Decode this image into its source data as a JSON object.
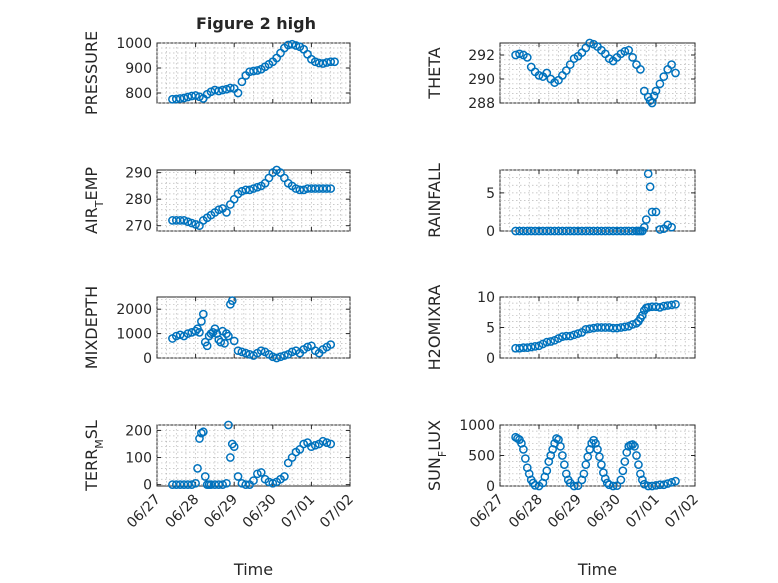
{
  "figure": {
    "title": "Figure 2 high",
    "marker_color": "#0072BD"
  },
  "chart_data": [
    {
      "type": "scatter",
      "ylabel": "PRESSURE",
      "ylabel_sub": "",
      "xlabel": "",
      "ylim": [
        760,
        1000
      ],
      "yticks": [
        800,
        900,
        1000
      ],
      "xlim": [
        0,
        5
      ],
      "xtick_labels": [],
      "grid": true,
      "x": [
        0.4,
        0.5,
        0.6,
        0.7,
        0.8,
        0.9,
        1.0,
        1.1,
        1.2,
        1.3,
        1.4,
        1.5,
        1.6,
        1.7,
        1.8,
        1.9,
        2.0,
        2.1,
        2.2,
        2.3,
        2.4,
        2.5,
        2.6,
        2.7,
        2.8,
        2.9,
        3.0,
        3.1,
        3.2,
        3.3,
        3.4,
        3.5,
        3.6,
        3.7,
        3.8,
        3.9,
        4.0,
        4.1,
        4.2,
        4.3,
        4.4,
        4.5,
        4.6
      ],
      "y": [
        775,
        776,
        778,
        780,
        784,
        788,
        790,
        785,
        778,
        795,
        805,
        812,
        808,
        812,
        815,
        820,
        818,
        800,
        845,
        870,
        885,
        888,
        890,
        895,
        905,
        915,
        925,
        940,
        960,
        980,
        992,
        995,
        990,
        985,
        975,
        955,
        935,
        925,
        920,
        918,
        922,
        925,
        925
      ]
    },
    {
      "type": "scatter",
      "ylabel": "THETA",
      "ylabel_sub": "",
      "xlabel": "",
      "ylim": [
        288,
        293
      ],
      "yticks": [
        288,
        290,
        292
      ],
      "xlim": [
        0,
        5
      ],
      "xtick_labels": [],
      "grid": true,
      "x": [
        0.4,
        0.5,
        0.6,
        0.7,
        0.8,
        0.9,
        1.0,
        1.1,
        1.2,
        1.3,
        1.4,
        1.5,
        1.6,
        1.7,
        1.8,
        1.9,
        2.0,
        2.1,
        2.2,
        2.3,
        2.4,
        2.5,
        2.6,
        2.7,
        2.8,
        2.9,
        3.0,
        3.1,
        3.2,
        3.3,
        3.4,
        3.5,
        3.6,
        3.7,
        3.8,
        3.85,
        3.9,
        3.95,
        4.0,
        4.1,
        4.2,
        4.3,
        4.4,
        4.5
      ],
      "y": [
        292.0,
        292.1,
        292.0,
        291.8,
        291.0,
        290.6,
        290.3,
        290.2,
        290.5,
        290.0,
        289.7,
        289.9,
        290.3,
        290.7,
        291.2,
        291.7,
        291.9,
        292.2,
        292.6,
        293.0,
        292.9,
        292.7,
        292.4,
        292.1,
        291.7,
        291.5,
        291.8,
        292.1,
        292.3,
        292.4,
        291.8,
        291.2,
        290.8,
        289.0,
        288.5,
        288.2,
        288.0,
        288.6,
        289.0,
        289.6,
        290.2,
        290.8,
        291.2,
        290.5
      ]
    },
    {
      "type": "scatter",
      "ylabel": "AIR",
      "ylabel_sub": "T",
      "ylabel_after": "EMP",
      "xlabel": "",
      "ylim": [
        268,
        291
      ],
      "yticks": [
        270,
        280,
        290
      ],
      "xlim": [
        0,
        5
      ],
      "xtick_labels": [],
      "grid": true,
      "x": [
        0.4,
        0.5,
        0.6,
        0.7,
        0.8,
        0.9,
        1.0,
        1.1,
        1.2,
        1.3,
        1.4,
        1.5,
        1.6,
        1.7,
        1.8,
        1.9,
        2.0,
        2.1,
        2.2,
        2.3,
        2.4,
        2.5,
        2.6,
        2.7,
        2.8,
        2.9,
        3.0,
        3.1,
        3.2,
        3.3,
        3.4,
        3.5,
        3.6,
        3.7,
        3.8,
        3.9,
        4.0,
        4.1,
        4.2,
        4.3,
        4.4,
        4.5
      ],
      "y": [
        272,
        272,
        272,
        272,
        271.5,
        271,
        270.5,
        270,
        272,
        273,
        274,
        275,
        276,
        276.5,
        275,
        278,
        280,
        282,
        283,
        283.5,
        283.5,
        284,
        284.5,
        285,
        286,
        288,
        290,
        291,
        290,
        288,
        286,
        285,
        284,
        283.5,
        283.5,
        284,
        284,
        284,
        284,
        284,
        284,
        284
      ]
    },
    {
      "type": "scatter",
      "ylabel": "RAINFALL",
      "ylabel_sub": "",
      "xlabel": "",
      "ylim": [
        0,
        8
      ],
      "yticks": [
        0,
        5
      ],
      "xlim": [
        0,
        5
      ],
      "xtick_labels": [],
      "grid": true,
      "x": [
        0.4,
        0.5,
        0.6,
        0.7,
        0.8,
        0.9,
        1.0,
        1.1,
        1.2,
        1.3,
        1.4,
        1.5,
        1.6,
        1.7,
        1.8,
        1.9,
        2.0,
        2.1,
        2.2,
        2.3,
        2.4,
        2.5,
        2.6,
        2.7,
        2.8,
        2.9,
        3.0,
        3.1,
        3.2,
        3.3,
        3.4,
        3.5,
        3.55,
        3.6,
        3.65,
        3.7,
        3.75,
        3.8,
        3.85,
        3.9,
        4.0,
        4.1,
        4.2,
        4.3,
        4.4
      ],
      "y": [
        0,
        0,
        0,
        0,
        0,
        0,
        0,
        0,
        0,
        0,
        0,
        0,
        0,
        0,
        0,
        0,
        0,
        0,
        0,
        0,
        0,
        0,
        0,
        0,
        0,
        0,
        0,
        0,
        0,
        0,
        0,
        0,
        0,
        0,
        0,
        0.5,
        1.5,
        7.5,
        5.8,
        2.5,
        2.5,
        0.2,
        0.3,
        0.8,
        0.5
      ]
    },
    {
      "type": "scatter",
      "ylabel": "MIXDEPTH",
      "ylabel_sub": "",
      "xlabel": "",
      "ylim": [
        0,
        2500
      ],
      "yticks": [
        0,
        1000,
        2000
      ],
      "xlim": [
        0,
        5
      ],
      "xtick_labels": [],
      "grid": true,
      "x": [
        0.4,
        0.5,
        0.6,
        0.7,
        0.8,
        0.9,
        1.0,
        1.05,
        1.1,
        1.15,
        1.2,
        1.25,
        1.3,
        1.35,
        1.4,
        1.45,
        1.5,
        1.55,
        1.6,
        1.65,
        1.7,
        1.75,
        1.8,
        1.85,
        1.9,
        1.95,
        2.0,
        2.1,
        2.2,
        2.3,
        2.4,
        2.5,
        2.6,
        2.7,
        2.8,
        2.9,
        3.0,
        3.1,
        3.2,
        3.3,
        3.4,
        3.5,
        3.6,
        3.7,
        3.8,
        3.9,
        4.0,
        4.1,
        4.2,
        4.3,
        4.4,
        4.5
      ],
      "y": [
        800,
        900,
        950,
        900,
        1000,
        1050,
        1100,
        1200,
        1050,
        1500,
        1800,
        650,
        500,
        900,
        1000,
        1050,
        1200,
        1000,
        750,
        650,
        1100,
        600,
        1000,
        900,
        2200,
        2350,
        700,
        300,
        250,
        200,
        150,
        100,
        200,
        300,
        250,
        150,
        50,
        0,
        50,
        100,
        150,
        250,
        300,
        200,
        350,
        450,
        500,
        300,
        200,
        350,
        450,
        550
      ]
    },
    {
      "type": "scatter",
      "ylabel": "H2OMIXRA",
      "ylabel_sub": "",
      "xlabel": "",
      "ylim": [
        0,
        10
      ],
      "yticks": [
        0,
        5,
        10
      ],
      "xlim": [
        0,
        5
      ],
      "xtick_labels": [],
      "grid": true,
      "x": [
        0.4,
        0.5,
        0.6,
        0.7,
        0.8,
        0.9,
        1.0,
        1.1,
        1.2,
        1.3,
        1.4,
        1.5,
        1.6,
        1.7,
        1.8,
        1.9,
        2.0,
        2.1,
        2.2,
        2.3,
        2.4,
        2.5,
        2.6,
        2.7,
        2.8,
        2.9,
        3.0,
        3.1,
        3.2,
        3.3,
        3.4,
        3.5,
        3.55,
        3.6,
        3.65,
        3.7,
        3.75,
        3.8,
        3.9,
        4.0,
        4.1,
        4.2,
        4.3,
        4.4,
        4.5
      ],
      "y": [
        1.6,
        1.6,
        1.7,
        1.7,
        1.8,
        1.9,
        2.0,
        2.3,
        2.6,
        2.7,
        2.9,
        3.2,
        3.5,
        3.6,
        3.6,
        3.8,
        4.0,
        4.2,
        4.7,
        4.8,
        4.9,
        5.0,
        5.0,
        5.0,
        5.0,
        4.9,
        4.9,
        5.0,
        5.1,
        5.2,
        5.5,
        5.7,
        6.0,
        6.5,
        7.0,
        7.8,
        8.2,
        8.3,
        8.4,
        8.4,
        8.3,
        8.5,
        8.6,
        8.7,
        8.8
      ]
    },
    {
      "type": "scatter",
      "ylabel": "TERR",
      "ylabel_sub": "M",
      "ylabel_after": "SL",
      "xlabel": "Time",
      "ylim": [
        -5,
        220
      ],
      "yticks": [
        0,
        100,
        200
      ],
      "xlim": [
        0,
        5
      ],
      "xtick_labels": [
        "06/27",
        "06/28",
        "06/29",
        "06/30",
        "07/01",
        "07/02"
      ],
      "grid": true,
      "x": [
        0.4,
        0.5,
        0.6,
        0.7,
        0.8,
        0.9,
        1.0,
        1.05,
        1.1,
        1.15,
        1.2,
        1.25,
        1.3,
        1.35,
        1.4,
        1.5,
        1.6,
        1.7,
        1.8,
        1.85,
        1.9,
        1.95,
        2.0,
        2.1,
        2.2,
        2.3,
        2.4,
        2.5,
        2.6,
        2.7,
        2.8,
        2.9,
        3.0,
        3.1,
        3.2,
        3.3,
        3.4,
        3.5,
        3.6,
        3.7,
        3.8,
        3.9,
        4.0,
        4.1,
        4.2,
        4.3,
        4.4,
        4.5
      ],
      "y": [
        0,
        0,
        0,
        0,
        0,
        0,
        5,
        60,
        170,
        190,
        195,
        30,
        0,
        0,
        0,
        0,
        0,
        0,
        5,
        220,
        100,
        150,
        140,
        30,
        5,
        0,
        0,
        15,
        40,
        45,
        20,
        10,
        5,
        10,
        20,
        30,
        80,
        100,
        120,
        130,
        150,
        155,
        140,
        145,
        150,
        160,
        155,
        150
      ]
    },
    {
      "type": "scatter",
      "ylabel": "SUN",
      "ylabel_sub": "F",
      "ylabel_after": "LUX",
      "xlabel": "Time",
      "ylim": [
        0,
        1000
      ],
      "yticks": [
        0,
        500,
        1000
      ],
      "xlim": [
        0,
        5
      ],
      "xtick_labels": [
        "06/27",
        "06/28",
        "06/29",
        "06/30",
        "07/01",
        "07/02"
      ],
      "grid": true,
      "x": [
        0.4,
        0.45,
        0.5,
        0.55,
        0.6,
        0.65,
        0.7,
        0.75,
        0.8,
        0.85,
        0.9,
        1.0,
        1.1,
        1.15,
        1.2,
        1.25,
        1.3,
        1.35,
        1.4,
        1.45,
        1.5,
        1.55,
        1.6,
        1.65,
        1.7,
        1.75,
        1.8,
        1.9,
        2.0,
        2.1,
        2.15,
        2.2,
        2.25,
        2.3,
        2.35,
        2.4,
        2.45,
        2.5,
        2.55,
        2.6,
        2.65,
        2.7,
        2.75,
        2.8,
        2.9,
        3.0,
        3.1,
        3.15,
        3.2,
        3.25,
        3.3,
        3.35,
        3.4,
        3.45,
        3.5,
        3.55,
        3.6,
        3.65,
        3.7,
        3.8,
        3.9,
        4.0,
        4.1,
        4.2,
        4.3,
        4.4,
        4.5
      ],
      "y": [
        800,
        780,
        760,
        700,
        600,
        450,
        300,
        200,
        100,
        50,
        10,
        0,
        50,
        150,
        250,
        400,
        500,
        600,
        700,
        780,
        760,
        650,
        500,
        350,
        200,
        100,
        50,
        0,
        5,
        100,
        200,
        350,
        480,
        600,
        700,
        750,
        700,
        600,
        480,
        350,
        220,
        120,
        50,
        20,
        0,
        5,
        100,
        250,
        400,
        550,
        650,
        670,
        680,
        650,
        500,
        350,
        200,
        100,
        30,
        0,
        0,
        10,
        20,
        20,
        40,
        60,
        80
      ]
    }
  ]
}
